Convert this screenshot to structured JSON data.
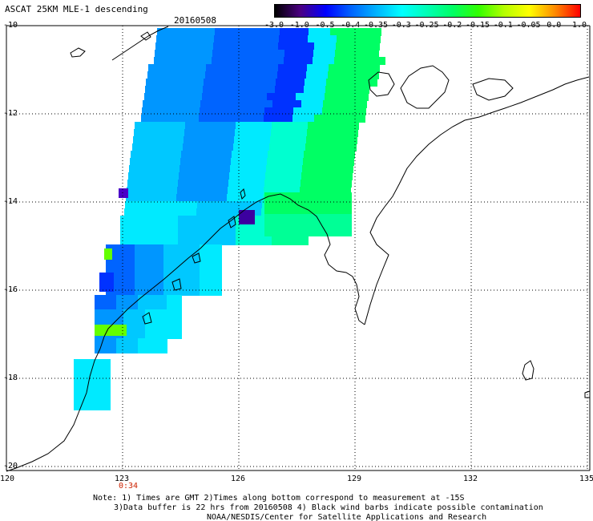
{
  "header": {
    "title": "ASCAT 25KM MLE-1 descending",
    "date": "20160508"
  },
  "colorbar": {
    "labels": [
      "-3.0",
      "-1.0",
      "-0.5",
      "-0.4",
      "-0.35",
      "-0.3",
      "-0.25",
      "-0.2",
      "-0.15",
      "-0.1",
      "-0.05",
      "0.0",
      "1.0"
    ],
    "colors": [
      "#000000",
      "#4b0082",
      "#0000ff",
      "#0064ff",
      "#00b4ff",
      "#00ffff",
      "#00ffb4",
      "#00ff64",
      "#32ff00",
      "#b4ff00",
      "#ffff00",
      "#ff8c00",
      "#ff0000"
    ]
  },
  "map": {
    "lon_labels": [
      "120",
      "123",
      "126",
      "129",
      "132",
      "135"
    ],
    "lat_labels": [
      "-10",
      "-12",
      "-14",
      "-16",
      "-18",
      "-20"
    ],
    "time_label": "0:34"
  },
  "notes": {
    "line1": "Note: 1) Times are GMT 2)Times along bottom correspond to measurement at -15S",
    "line2": "3)Data buffer is 22 hrs from 20160508 4) Black wind barbs indicate possible contamination",
    "line3": "NOAA/NESDIS/Center for Satellite Applications and Research"
  }
}
